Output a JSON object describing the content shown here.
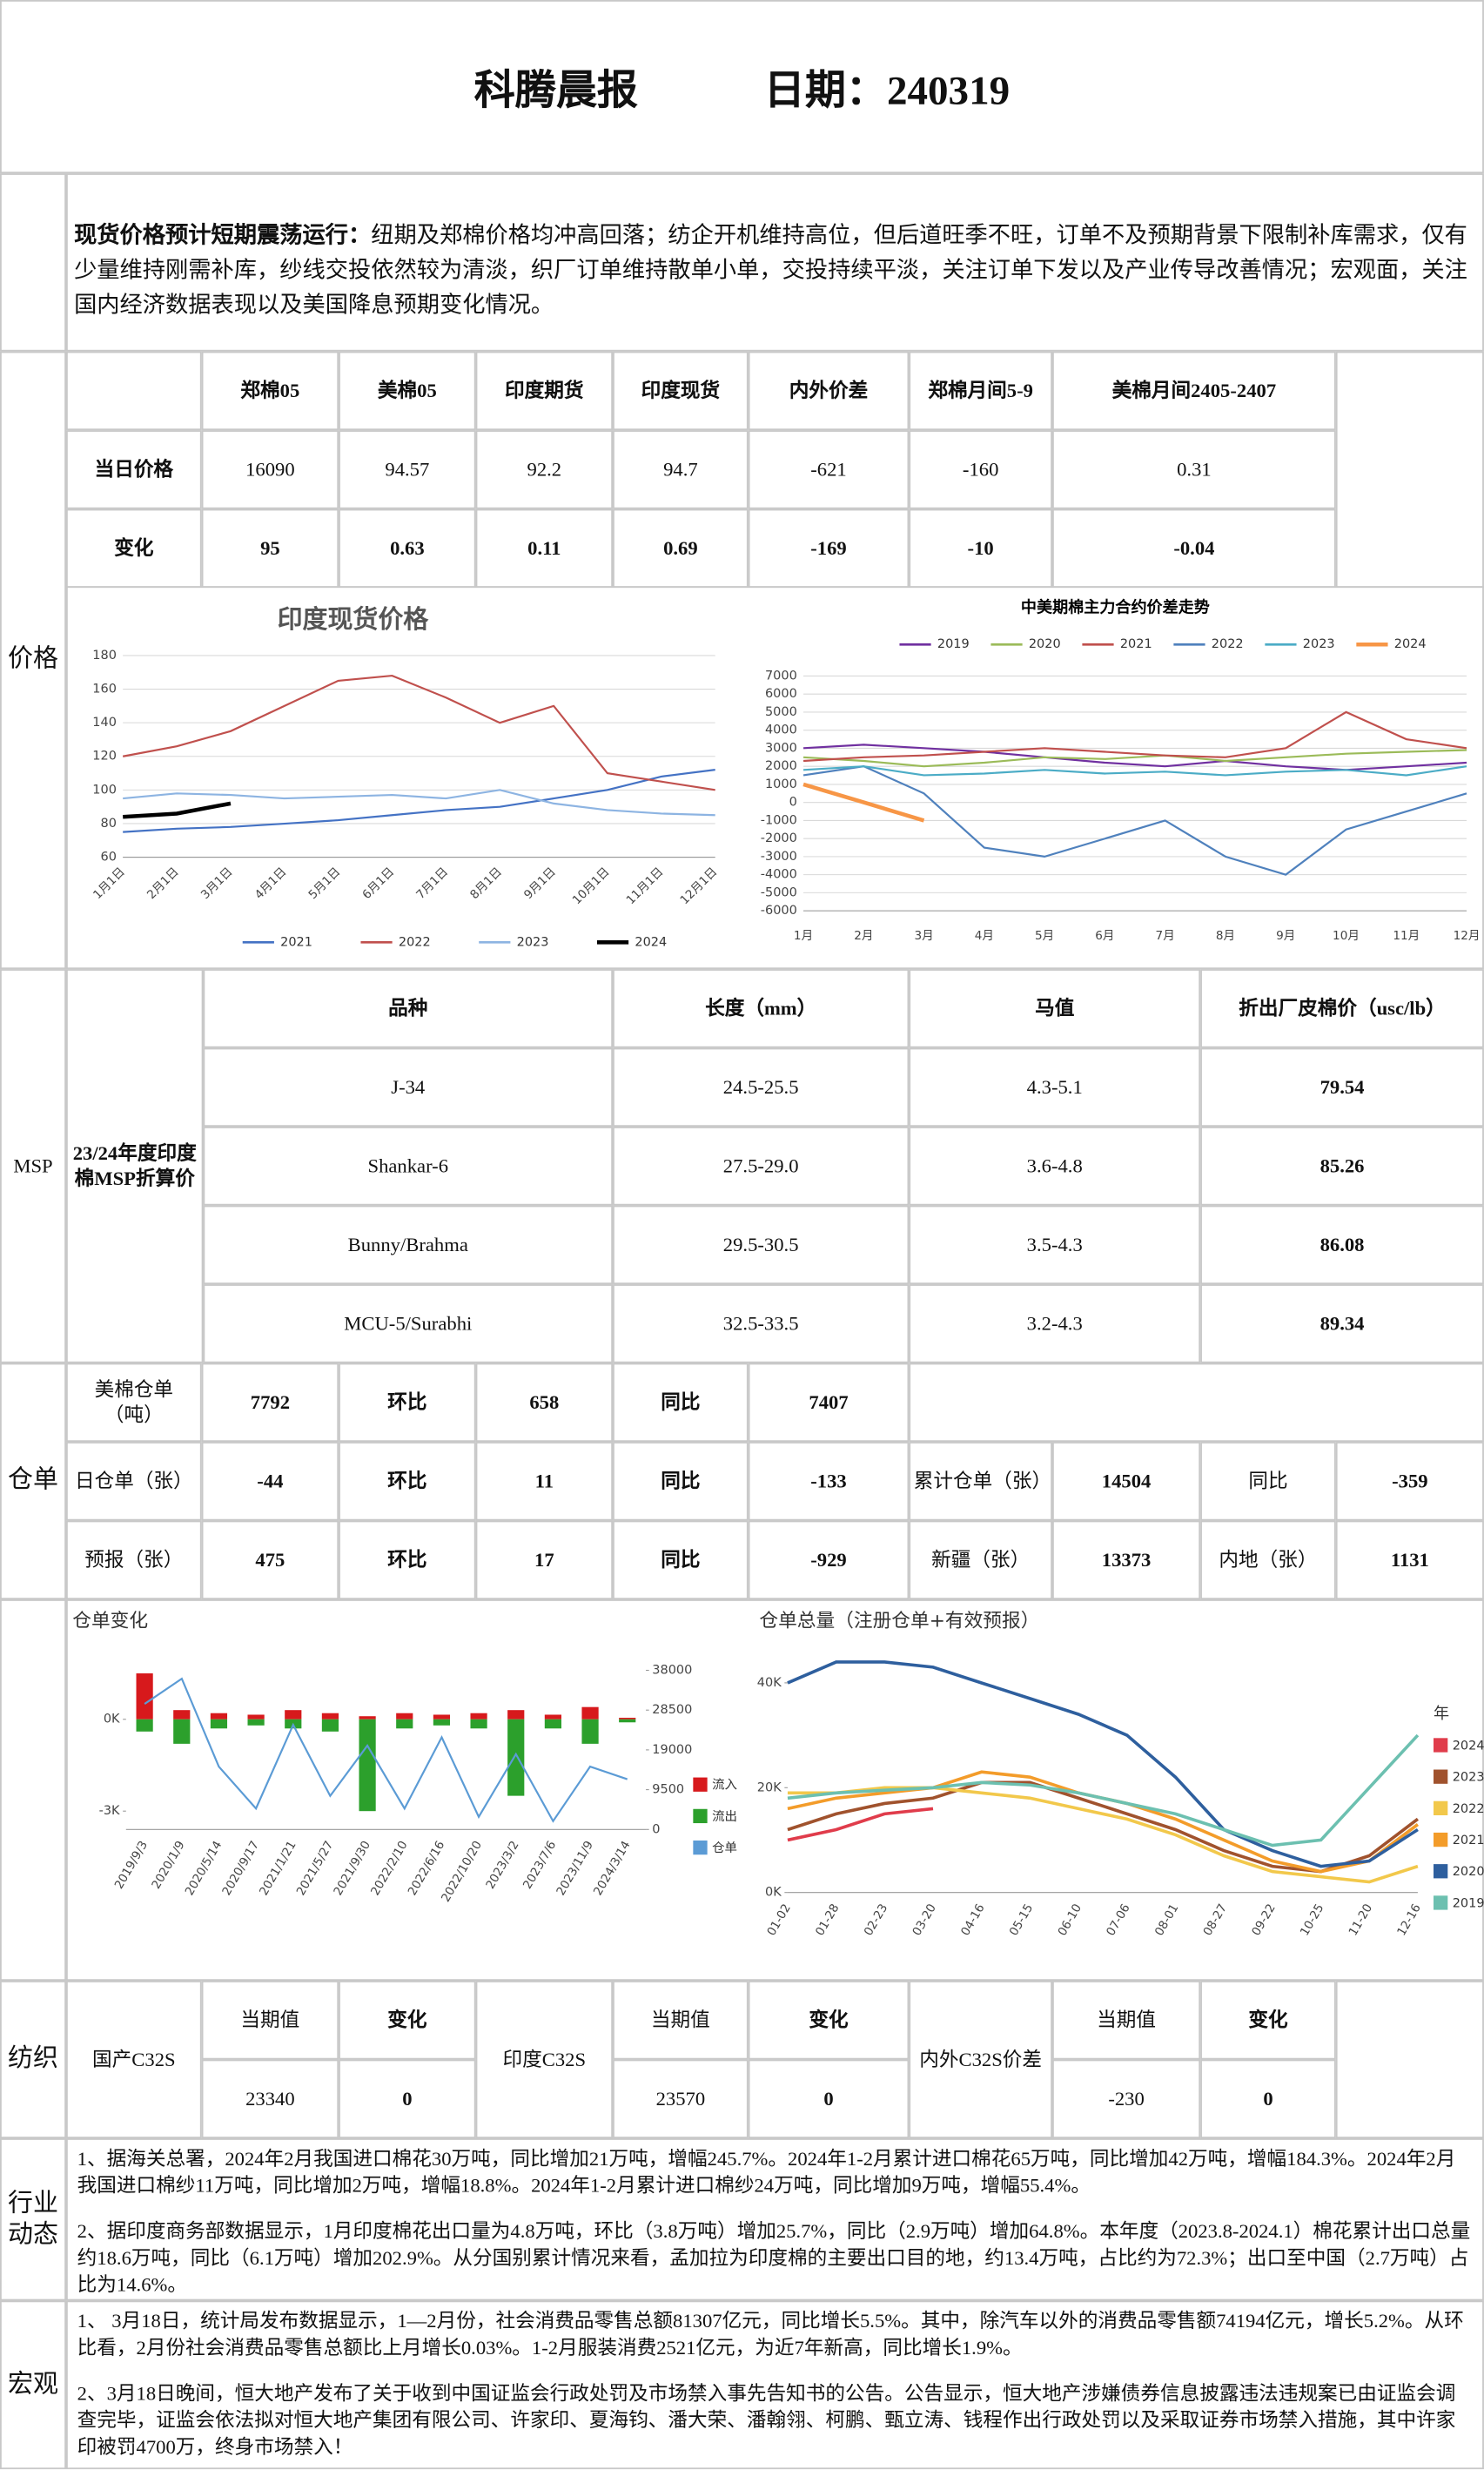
{
  "header": {
    "title": "科腾晨报",
    "date": "日期：240319"
  },
  "summary": {
    "lead": "现货价格预计短期震荡运行：",
    "text": "纽期及郑棉价格均冲高回落；纺企开机维持高位，但后道旺季不旺，订单不及预期背景下限制补库需求，仅有少量维持刚需补库，纱线交投依然较为清淡，织厂订单维持散单小单，交投持续平淡，关注订单下发以及产业传导改善情况；宏观面，关注国内经济数据表现以及美国降息预期变化情况。"
  },
  "price": {
    "section": "价格",
    "columns": [
      "郑棉05",
      "美棉05",
      "印度期货",
      "印度现货",
      "内外价差",
      "郑棉月间5-9",
      "美棉月间2405-2407"
    ],
    "rows": [
      {
        "label": "当日价格",
        "values": [
          16090,
          94.57,
          92.2,
          94.7,
          -621,
          -160,
          0.31
        ]
      },
      {
        "label": "变化",
        "values": [
          95,
          0.63,
          0.11,
          0.69,
          -169,
          -10,
          -0.04
        ]
      }
    ]
  },
  "msp": {
    "section": "MSP",
    "title": "23/24年度印度棉MSP折算价",
    "columns": [
      "品种",
      "长度（mm）",
      "马值",
      "折出厂皮棉价（usc/lb）"
    ],
    "rows": [
      [
        "J-34",
        "24.5-25.5",
        "4.3-5.1",
        79.54
      ],
      [
        "Shankar-6",
        "27.5-29.0",
        "3.6-4.8",
        85.26
      ],
      [
        "Bunny/Brahma",
        "29.5-30.5",
        "3.5-4.3",
        86.08
      ],
      [
        "MCU-5/Surabhi",
        "32.5-33.5",
        "3.2-4.3",
        89.34
      ]
    ]
  },
  "warehouse": {
    "section": "仓单",
    "rows": [
      [
        "美棉仓单（吨）",
        7792,
        "环比",
        658,
        "同比",
        7407
      ],
      [
        "日仓单（张）",
        -44,
        "环比",
        11,
        "同比",
        -133,
        "累计仓单（张）",
        14504,
        "同比",
        -359
      ],
      [
        "预报（张）",
        475,
        "环比",
        17,
        "同比",
        -929,
        "新疆（张）",
        13373,
        "内地（张）",
        1131
      ]
    ]
  },
  "textile": {
    "section": "纺织",
    "items": [
      {
        "name": "国产C32S",
        "current_label": "当期值",
        "change_label": "变化",
        "current": 23340,
        "change": 0
      },
      {
        "name": "印度C32S",
        "current_label": "当期值",
        "change_label": "变化",
        "current": 23570,
        "change": 0
      },
      {
        "name": "内外C32S价差",
        "current_label": "当期值",
        "change_label": "变化",
        "current": -230,
        "change": 0
      }
    ]
  },
  "news": {
    "section": "行业动态",
    "paragraphs": [
      "1、据海关总署，2024年2月我国进口棉花30万吨，同比增加21万吨，增幅245.7%。2024年1-2月累计进口棉花65万吨，同比增加42万吨，增幅184.3%。2024年2月我国进口棉纱11万吨，同比增加2万吨，增幅18.8%。2024年1-2月累计进口棉纱24万吨，同比增加9万吨，增幅55.4%。",
      "2、据印度商务部数据显示，1月印度棉花出口量为4.8万吨，环比（3.8万吨）增加25.7%，同比（2.9万吨）增加64.8%。本年度（2023.8-2024.1）棉花累计出口总量约18.6万吨，同比（6.1万吨）增加202.9%。从分国别累计情况来看，孟加拉为印度棉的主要出口目的地，约13.4万吨，占比约为72.3%；出口至中国（2.7万吨）占比为14.6%。"
    ]
  },
  "macro": {
    "section": "宏观",
    "paragraphs": [
      "1、 3月18日，统计局发布数据显示，1—2月份，社会消费品零售总额81307亿元，同比增长5.5%。其中，除汽车以外的消费品零售额74194亿元，增长5.2%。从环比看，2月份社会消费品零售总额比上月增长0.03%。1-2月服装消费2521亿元，为近7年新高，同比增长1.9%。",
      "2、3月18日晚间，恒大地产发布了关于收到中国证监会行政处罚及市场禁入事先告知书的公告。公告显示，恒大地产涉嫌债券信息披露违法违规案已由证监会调查完毕，证监会依法拟对恒大地产集团有限公司、许家印、夏海钧、潘大荣、潘翰翎、柯鹏、甄立涛、钱程作出行政处罚以及采取证券市场禁入措施，其中许家印被罚4700万，终身市场禁入！"
    ]
  },
  "chart_data": [
    {
      "type": "line",
      "title": "印度现货价格",
      "categories": [
        "1月1日",
        "2月1日",
        "3月1日",
        "4月1日",
        "5月1日",
        "6月1日",
        "7月1日",
        "8月1日",
        "9月1日",
        "10月1日",
        "11月1日",
        "12月1日"
      ],
      "ylim": [
        60,
        180
      ],
      "yticks": [
        60,
        80,
        100,
        120,
        140,
        160,
        180
      ],
      "grid": true,
      "legend": "bottom",
      "series": [
        {
          "name": "2021",
          "color": "#4472c4",
          "values": [
            75,
            77,
            78,
            80,
            82,
            85,
            88,
            90,
            95,
            100,
            108,
            112
          ]
        },
        {
          "name": "2022",
          "color": "#c0504d",
          "values": [
            120,
            126,
            135,
            150,
            165,
            168,
            155,
            140,
            150,
            110,
            105,
            100
          ]
        },
        {
          "name": "2023",
          "color": "#8db4e2",
          "values": [
            95,
            98,
            97,
            95,
            96,
            97,
            95,
            100,
            92,
            88,
            86,
            85
          ]
        },
        {
          "name": "2024",
          "color": "#000000",
          "values": [
            84,
            86,
            92,
            null,
            null,
            null,
            null,
            null,
            null,
            null,
            null,
            null
          ]
        }
      ]
    },
    {
      "type": "line",
      "title": "中美期棉主力合约价差走势",
      "categories": [
        "1月",
        "2月",
        "3月",
        "4月",
        "5月",
        "6月",
        "7月",
        "8月",
        "9月",
        "10月",
        "11月",
        "12月"
      ],
      "ylim": [
        -6000,
        7000
      ],
      "yticks": [
        -6000,
        -5000,
        -4000,
        -3000,
        -2000,
        -1000,
        0,
        1000,
        2000,
        3000,
        4000,
        5000,
        6000,
        7000
      ],
      "grid": true,
      "legend": "top",
      "series": [
        {
          "name": "2019",
          "color": "#7030a0",
          "values": [
            3000,
            3200,
            3000,
            2800,
            2500,
            2200,
            2000,
            2300,
            2000,
            1800,
            2000,
            2200
          ]
        },
        {
          "name": "2020",
          "color": "#9bbb59",
          "values": [
            2500,
            2300,
            2000,
            2200,
            2500,
            2400,
            2600,
            2300,
            2500,
            2700,
            2800,
            2900
          ]
        },
        {
          "name": "2021",
          "color": "#c0504d",
          "values": [
            2300,
            2500,
            2600,
            2800,
            3000,
            2800,
            2600,
            2500,
            3000,
            5000,
            3500,
            3000
          ]
        },
        {
          "name": "2022",
          "color": "#4f81bd",
          "values": [
            1500,
            2000,
            500,
            -2500,
            -3000,
            -2000,
            -1000,
            -3000,
            -4000,
            -1500,
            -500,
            500
          ]
        },
        {
          "name": "2023",
          "color": "#4bacc6",
          "values": [
            1800,
            2000,
            1500,
            1600,
            1800,
            1600,
            1700,
            1500,
            1700,
            1800,
            1500,
            2000
          ]
        },
        {
          "name": "2024",
          "color": "#f79646",
          "values": [
            1000,
            0,
            -1000,
            null,
            null,
            null,
            null,
            null,
            null,
            null,
            null,
            null
          ]
        }
      ]
    },
    {
      "type": "bar",
      "title": "仓单变化",
      "categories": [
        "2019/9/3",
        "2020/1/9",
        "2020/5/14",
        "2020/9/17",
        "2021/1/21",
        "2021/5/27",
        "2021/9/30",
        "2022/2/10",
        "2022/6/16",
        "2022/10/20",
        "2023/3/2",
        "2023/7/6",
        "2023/11/9",
        "2024/3/14"
      ],
      "ylim": [
        -3600,
        1600
      ],
      "yticks": [
        {
          "value": 0,
          "label": "0K"
        },
        {
          "value": -3000,
          "label": "-3K"
        }
      ],
      "y2lim": [
        0,
        38000
      ],
      "y2ticks": [
        0,
        9500,
        19000,
        28500,
        38000
      ],
      "legend": "right",
      "series": [
        {
          "name": "流入",
          "color": "#d7191c",
          "values": [
            1500,
            300,
            200,
            150,
            300,
            200,
            100,
            200,
            150,
            200,
            300,
            150,
            400,
            50
          ]
        },
        {
          "name": "流出",
          "color": "#2ca02c",
          "values": [
            -400,
            -800,
            -300,
            -200,
            -300,
            -400,
            -3000,
            -300,
            -200,
            -300,
            -2500,
            -300,
            -800,
            -100
          ]
        },
        {
          "name": "仓单",
          "color": "#5b9bd5",
          "axis": "y2",
          "values": [
            30000,
            36000,
            15000,
            5000,
            25000,
            8000,
            20000,
            5000,
            22000,
            3000,
            18000,
            2000,
            15000,
            12000
          ]
        }
      ]
    },
    {
      "type": "line",
      "title": "仓单总量（注册仓单+有效预报）",
      "categories": [
        "01-02",
        "01-28",
        "02-23",
        "03-20",
        "04-16",
        "05-15",
        "06-10",
        "07-06",
        "08-01",
        "08-27",
        "09-22",
        "10-25",
        "11-20",
        "12-16"
      ],
      "ylim": [
        0,
        46000
      ],
      "yticks": [
        {
          "value": 0,
          "label": "0K"
        },
        {
          "value": 20000,
          "label": "20K"
        },
        {
          "value": 40000,
          "label": "40K"
        }
      ],
      "legend": "right",
      "legend_title": "年",
      "series": [
        {
          "name": "2024",
          "color": "#e03c4b",
          "values": [
            10000,
            12000,
            15000,
            16000,
            null,
            null,
            null,
            null,
            null,
            null,
            null,
            null,
            null,
            null
          ]
        },
        {
          "name": "2023",
          "color": "#a0522d",
          "values": [
            12000,
            15000,
            17000,
            18000,
            21000,
            21000,
            18000,
            15000,
            12000,
            8000,
            5000,
            4000,
            7000,
            14000
          ]
        },
        {
          "name": "2022",
          "color": "#f2c84b",
          "values": [
            19000,
            19000,
            20000,
            20000,
            19000,
            18000,
            16000,
            14000,
            11000,
            7000,
            4000,
            3000,
            2000,
            5000
          ]
        },
        {
          "name": "2021",
          "color": "#f39c2a",
          "values": [
            16000,
            18000,
            19000,
            20000,
            23000,
            22000,
            19000,
            17000,
            14000,
            10000,
            6000,
            4000,
            6000,
            13000
          ]
        },
        {
          "name": "2020",
          "color": "#2e5f9e",
          "values": [
            40000,
            44000,
            44000,
            43000,
            40000,
            37000,
            34000,
            30000,
            22000,
            12000,
            8000,
            5000,
            6000,
            12000
          ]
        },
        {
          "name": "2019",
          "color": "#6cc0b0",
          "values": [
            18000,
            19000,
            19500,
            20000,
            21000,
            20500,
            19000,
            17000,
            15000,
            12000,
            9000,
            10000,
            20000,
            30000
          ]
        }
      ]
    }
  ]
}
